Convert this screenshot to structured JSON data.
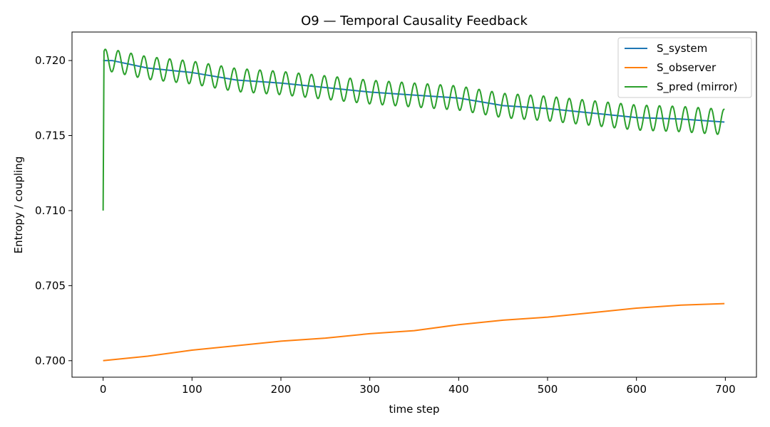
{
  "chart_data": {
    "type": "line",
    "title": "O9 — Temporal Causality Feedback",
    "xlabel": "time step",
    "ylabel": "Entropy / coupling",
    "xlim": [
      -35,
      735
    ],
    "ylim": [
      0.6989,
      0.7219
    ],
    "xticks": [
      0,
      100,
      200,
      300,
      400,
      500,
      600,
      700
    ],
    "xtick_labels": [
      "0",
      "100",
      "200",
      "300",
      "400",
      "500",
      "600",
      "700"
    ],
    "yticks": [
      0.7,
      0.705,
      0.71,
      0.715,
      0.72
    ],
    "ytick_labels": [
      "0.700",
      "0.705",
      "0.710",
      "0.715",
      "0.720"
    ],
    "grid": false,
    "legend_position": "upper-right",
    "series": [
      {
        "name": "S_system",
        "color": "#1f77b4",
        "x": [
          0,
          10,
          50,
          100,
          150,
          200,
          250,
          300,
          350,
          400,
          450,
          500,
          550,
          600,
          650,
          699
        ],
        "values": [
          0.72,
          0.72,
          0.7195,
          0.7192,
          0.7187,
          0.7185,
          0.7182,
          0.7179,
          0.7177,
          0.7175,
          0.717,
          0.7168,
          0.7165,
          0.7162,
          0.7161,
          0.7159
        ]
      },
      {
        "name": "S_observer",
        "color": "#ff7f0e",
        "x": [
          0,
          50,
          100,
          150,
          200,
          250,
          300,
          350,
          400,
          450,
          500,
          550,
          600,
          650,
          699
        ],
        "values": [
          0.7,
          0.7003,
          0.7007,
          0.701,
          0.7013,
          0.7015,
          0.7018,
          0.702,
          0.7024,
          0.7027,
          0.7029,
          0.7032,
          0.7035,
          0.7037,
          0.7038
        ]
      },
      {
        "name": "S_pred (mirror)",
        "color": "#2ca02c",
        "model": "mirror of S_system plus oscillation",
        "start_value": 0.71,
        "oscillation_period": 14.5,
        "amplitude_start": 0.00075,
        "amplitude_end": 0.00085,
        "x": [
          0,
          1,
          5,
          19,
          34,
          48,
          63,
          77,
          92,
          106,
          121,
          135,
          150,
          164,
          179,
          193,
          208,
          222,
          237,
          251,
          266,
          280,
          295,
          309,
          324,
          338,
          353,
          367,
          382,
          396,
          411,
          425,
          440,
          454,
          469,
          483,
          498,
          512,
          527,
          541,
          556,
          570,
          585,
          599,
          614,
          628,
          643,
          657,
          672,
          686,
          699
        ],
        "values": [
          0.71,
          0.72,
          0.7208,
          0.7206,
          0.7204,
          0.7203,
          0.7201,
          0.72,
          0.7199,
          0.7198,
          0.7197,
          0.7196,
          0.7195,
          0.7194,
          0.7193,
          0.7192,
          0.7191,
          0.719,
          0.7189,
          0.7188,
          0.7187,
          0.7186,
          0.7185,
          0.7185,
          0.7184,
          0.7183,
          0.7182,
          0.7181,
          0.718,
          0.718,
          0.7179,
          0.7178,
          0.7177,
          0.7176,
          0.7175,
          0.7174,
          0.7174,
          0.7173,
          0.7172,
          0.7171,
          0.717,
          0.7169,
          0.7169,
          0.7168,
          0.7168,
          0.7167,
          0.7166,
          0.7165,
          0.7165,
          0.7164,
          0.7154
        ]
      }
    ]
  }
}
